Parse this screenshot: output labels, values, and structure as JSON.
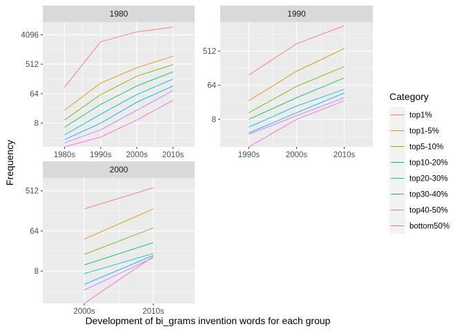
{
  "chart_data": {
    "type": "line",
    "xlabel": "Development of bi_grams invention words for each group",
    "ylabel": "Frequency",
    "y_scale": "log2",
    "grid": true,
    "legend": {
      "title": "Category",
      "placement": "right",
      "entries": [
        "top1%",
        "top1-5%",
        "top5-10%",
        "top10-20%",
        "top20-30%",
        "top30-40%",
        "top40-50%",
        "bottom50%"
      ]
    },
    "colors": {
      "top1%": "#F8766D",
      "top1-5%": "#CD9600",
      "top5-10%": "#7CAE00",
      "top10-20%": "#00BE67",
      "top20-30%": "#00BFC4",
      "top30-40%": "#00A9FF",
      "top40-50%": "#C77CFF",
      "bottom50%": "#FF61CC"
    },
    "panels": [
      {
        "title": "1980",
        "x": [
          "1980s",
          "1990s",
          "2000s",
          "2010s"
        ],
        "yticks": [
          8,
          64,
          512,
          4096
        ],
        "ylim": [
          1.5,
          10000
        ],
        "series": [
          {
            "name": "top1%",
            "values": [
              100,
              2500,
              5000,
              7000
            ]
          },
          {
            "name": "top1-5%",
            "values": [
              20,
              135,
              400,
              900
            ]
          },
          {
            "name": "top5-10%",
            "values": [
              10,
              60,
              220,
              500
            ]
          },
          {
            "name": "top10-20%",
            "values": [
              6,
              30,
              110,
              300
            ]
          },
          {
            "name": "top20-30%",
            "values": [
              3.5,
              15,
              60,
              180
            ]
          },
          {
            "name": "top30-40%",
            "values": [
              2.5,
              8,
              35,
              110
            ]
          },
          {
            "name": "top40-50%",
            "values": [
              2,
              5,
              20,
              80
            ]
          },
          {
            "name": "bottom50%",
            "values": [
              1.5,
              3,
              10,
              40
            ]
          }
        ]
      },
      {
        "title": "1990",
        "x": [
          "1990s",
          "2000s",
          "2010s"
        ],
        "yticks": [
          8,
          64,
          512
        ],
        "ylim": [
          1.5,
          3000
        ],
        "series": [
          {
            "name": "top1%",
            "values": [
              120,
              800,
              2400
            ]
          },
          {
            "name": "top1-5%",
            "values": [
              25,
              150,
              600
            ]
          },
          {
            "name": "top5-10%",
            "values": [
              12,
              60,
              200
            ]
          },
          {
            "name": "top10-20%",
            "values": [
              8,
              30,
              100
            ]
          },
          {
            "name": "top20-30%",
            "values": [
              5,
              18,
              50
            ]
          },
          {
            "name": "top30-40%",
            "values": [
              3.5,
              12,
              40
            ]
          },
          {
            "name": "top40-50%",
            "values": [
              3.2,
              10,
              30
            ]
          },
          {
            "name": "bottom50%",
            "values": [
              1.5,
              8,
              25
            ]
          }
        ]
      },
      {
        "title": "2000",
        "x": [
          "2000s",
          "2010s"
        ],
        "yticks": [
          8,
          64,
          512
        ],
        "ylim": [
          1.5,
          1000
        ],
        "series": [
          {
            "name": "top1%",
            "values": [
              200,
              600
            ]
          },
          {
            "name": "top1-5%",
            "values": [
              42,
              200
            ]
          },
          {
            "name": "top5-10%",
            "values": [
              19,
              75
            ]
          },
          {
            "name": "top10-20%",
            "values": [
              11,
              35
            ]
          },
          {
            "name": "top20-30%",
            "values": [
              7,
              20
            ]
          },
          {
            "name": "top30-40%",
            "values": [
              4,
              18
            ]
          },
          {
            "name": "top40-50%",
            "values": [
              3,
              16
            ]
          },
          {
            "name": "bottom50%",
            "values": [
              1.5,
              17
            ]
          }
        ]
      }
    ]
  }
}
